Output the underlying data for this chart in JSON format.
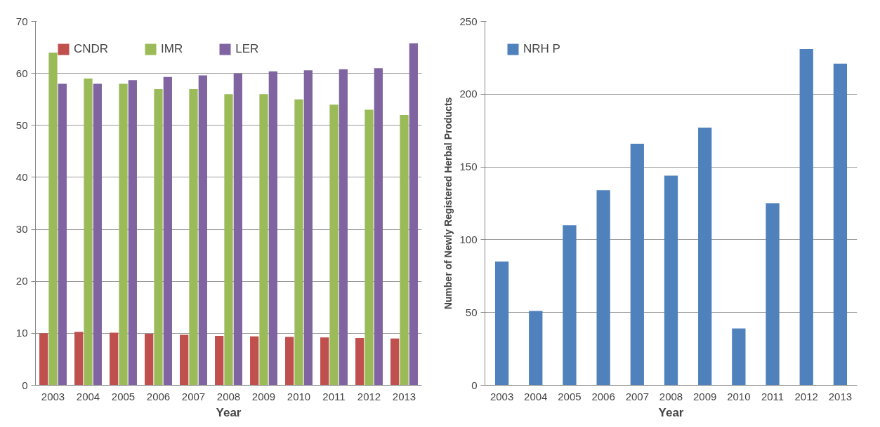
{
  "chart_data": [
    {
      "type": "bar",
      "xlabel": "Year",
      "categories": [
        "2003",
        "2004",
        "2005",
        "2006",
        "2007",
        "2008",
        "2009",
        "2010",
        "2011",
        "2012",
        "2013"
      ],
      "ylim": [
        0,
        70
      ],
      "yticks": [
        0,
        10,
        20,
        30,
        40,
        50,
        60,
        70
      ],
      "grid": "y",
      "legend": "top left",
      "series": [
        {
          "name": "CNDR",
          "color": "#c0504d",
          "values": [
            10,
            10.3,
            10.1,
            9.9,
            9.7,
            9.5,
            9.4,
            9.3,
            9.2,
            9.1,
            9.0
          ]
        },
        {
          "name": "IMR",
          "color": "#9bbb59",
          "values": [
            64,
            59,
            58,
            57,
            57,
            56,
            56,
            55,
            54,
            53,
            52
          ]
        },
        {
          "name": "LER",
          "color": "#8064a2",
          "values": [
            58,
            58,
            58.7,
            59.3,
            59.6,
            60,
            60.4,
            60.6,
            60.8,
            61,
            65.8
          ]
        }
      ]
    },
    {
      "type": "bar",
      "xlabel": "Year",
      "ylabel": "Number of Newly Registered Herbal Products",
      "categories": [
        "2003",
        "2004",
        "2005",
        "2006",
        "2007",
        "2008",
        "2009",
        "2010",
        "2011",
        "2012",
        "2013"
      ],
      "ylim": [
        0,
        250
      ],
      "yticks": [
        0,
        50,
        100,
        150,
        200,
        250
      ],
      "grid": "y",
      "legend": "top left",
      "series": [
        {
          "name": "NRH P",
          "color": "#4f81bd",
          "values": [
            85,
            51,
            110,
            134,
            166,
            144,
            177,
            39,
            125,
            231,
            221
          ]
        }
      ]
    }
  ]
}
